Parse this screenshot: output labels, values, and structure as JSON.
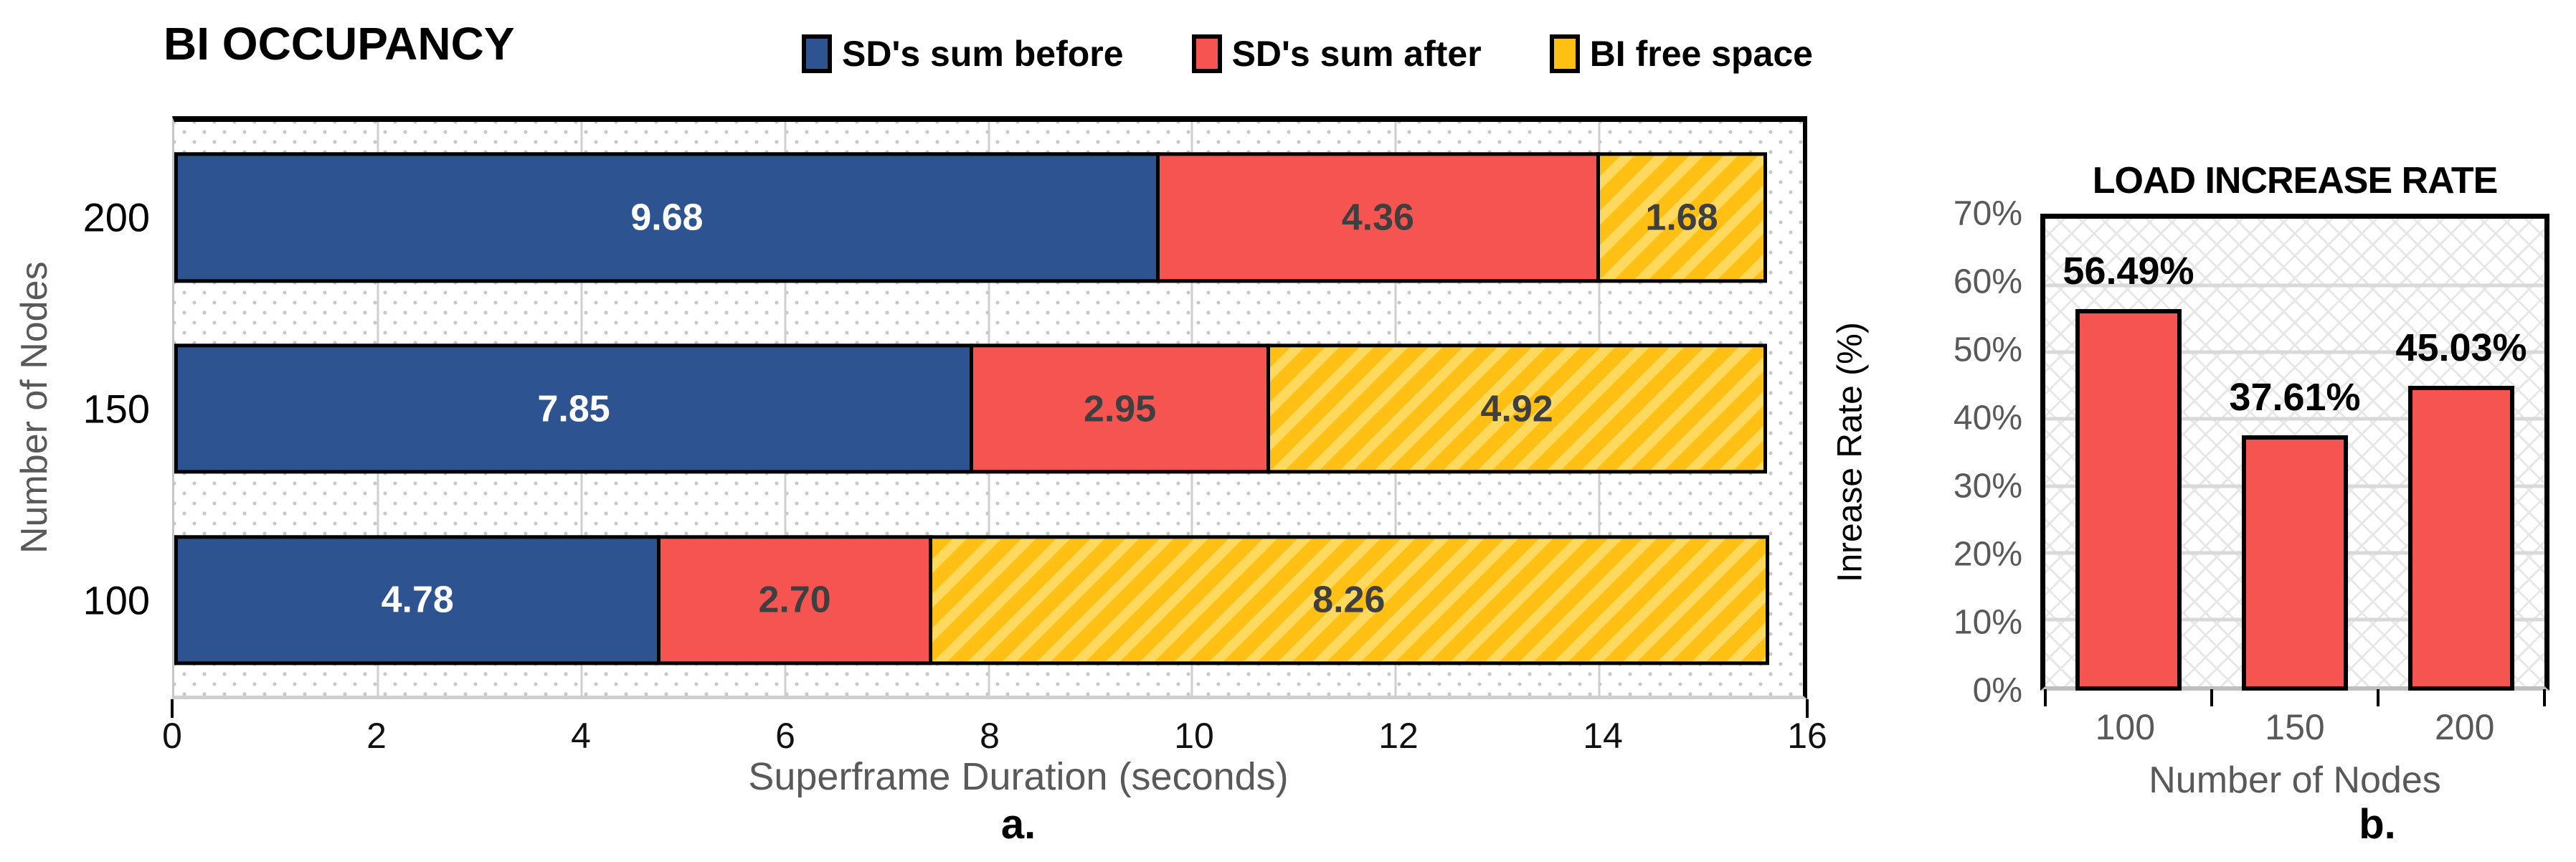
{
  "chart_data": [
    {
      "type": "bar",
      "orientation": "horizontal",
      "stacked": true,
      "title": "BI OCCUPANCY",
      "categories": [
        "200",
        "150",
        "100"
      ],
      "series": [
        {
          "name": "SD's sum before",
          "color": "#2E5391",
          "pattern": "solid",
          "values": [
            9.68,
            7.85,
            4.78
          ],
          "display_values": [
            "9.68",
            "7.85",
            "4.78"
          ]
        },
        {
          "name": "SD's sum after",
          "color": "#F65450",
          "pattern": "solid",
          "values": [
            4.36,
            2.95,
            2.7
          ],
          "display_values": [
            "4.36",
            "2.95",
            "2.70"
          ]
        },
        {
          "name": "BI free space",
          "color": "#FFC013",
          "pattern": "diagonal-stripe",
          "stripe_color": "#FFD95E",
          "values": [
            1.68,
            4.92,
            8.26
          ],
          "display_values": [
            "1.68",
            "4.92",
            "8.26"
          ]
        }
      ],
      "xlabel": "Superframe Duration (seconds)",
      "ylabel": "Number of Nodes",
      "xlim": [
        0,
        16
      ],
      "x_ticks": [
        0,
        2,
        4,
        6,
        8,
        10,
        12,
        14,
        16
      ],
      "grid": "vertical",
      "background_pattern": "dots",
      "legend_position": "top",
      "caption": "a."
    },
    {
      "type": "bar",
      "orientation": "vertical",
      "stacked": false,
      "title": "LOAD INCREASE RATE",
      "categories": [
        "100",
        "150",
        "200"
      ],
      "values": [
        56.49,
        37.61,
        45.03
      ],
      "data_labels": [
        "56.49%",
        "37.61%",
        "45.03%"
      ],
      "bar_color": "#F65450",
      "xlabel": "Number of Nodes",
      "ylabel": "Inrease Rate (%)",
      "ylim": [
        0,
        70
      ],
      "y_ticks": [
        0,
        10,
        20,
        30,
        40,
        50,
        60,
        70
      ],
      "y_tick_labels": [
        "0%",
        "10%",
        "20%",
        "30%",
        "40%",
        "50%",
        "60%",
        "70%"
      ],
      "grid": "horizontal",
      "background_pattern": "zigzag",
      "caption": "b."
    }
  ],
  "colors": {
    "axis_text_gray": "#595959",
    "tick_text_black": "#111111",
    "grid_left": "#CFCFCF",
    "grid_right": "#D9D9D9",
    "segment_label_dark": "#3F3F3F",
    "segment_label_light": "#FFFFFF",
    "border_black": "#000000"
  }
}
